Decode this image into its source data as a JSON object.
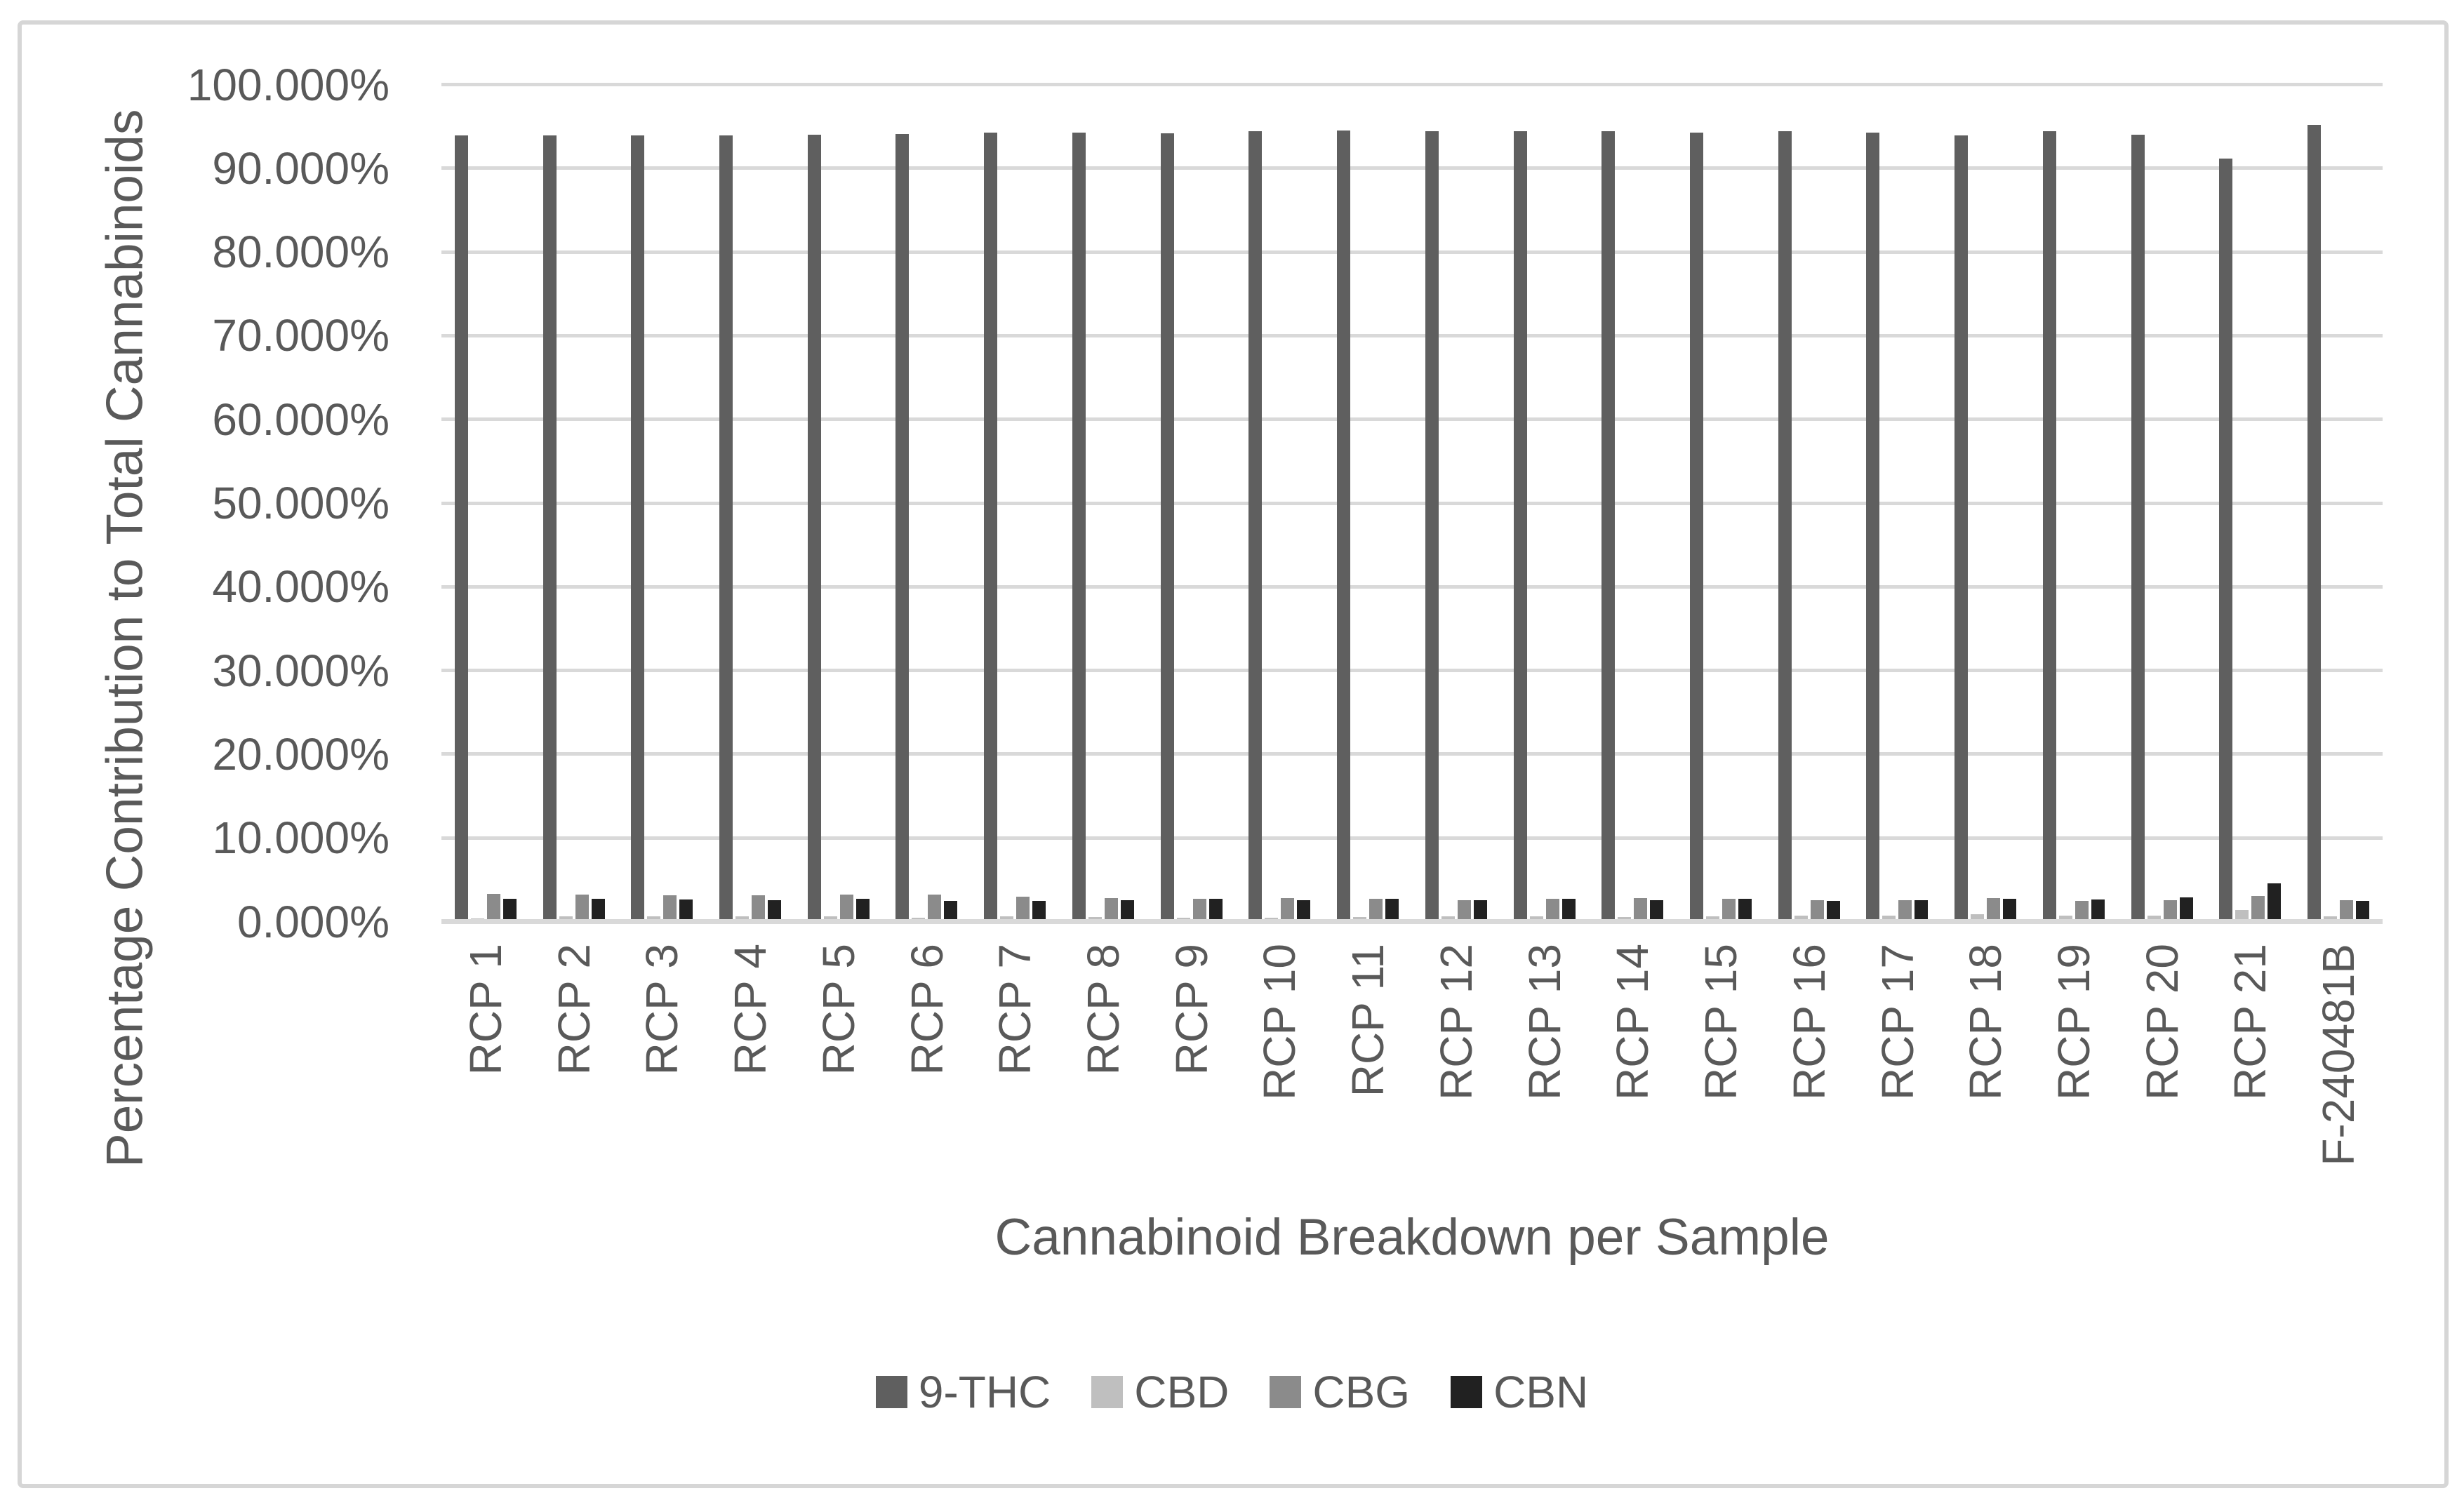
{
  "chart_data": {
    "type": "bar",
    "title": "",
    "xlabel": "Cannabinoid Breakdown per Sample",
    "ylabel": "Percentage Contribution to Total Cannabinoids",
    "ylim": [
      0,
      100
    ],
    "grid": true,
    "legend_position": "bottom",
    "ytick_labels": [
      "0.000%",
      "10.000%",
      "20.000%",
      "30.000%",
      "40.000%",
      "50.000%",
      "60.000%",
      "70.000%",
      "80.000%",
      "90.000%",
      "100.000%"
    ],
    "categories": [
      "RCP 1",
      "RCP 2",
      "RCP 3",
      "RCP 4",
      "RCP 5",
      "RCP 6",
      "RCP 7",
      "RCP 8",
      "RCP 9",
      "RCP 10",
      "RCP 11",
      "RCP 12",
      "RCP 13",
      "RCP 14",
      "RCP 15",
      "RCP 16",
      "RCP 17",
      "RCP 18",
      "RCP 19",
      "RCP 20",
      "RCP 21",
      "F-240481B"
    ],
    "series": [
      {
        "name": "9-THC",
        "color": "#5f5f5f",
        "values": [
          93.6,
          93.6,
          93.6,
          93.6,
          93.7,
          93.8,
          94.0,
          94.0,
          93.9,
          94.1,
          94.2,
          94.1,
          94.1,
          94.1,
          94.0,
          94.1,
          94.0,
          93.6,
          94.1,
          93.7,
          90.9,
          94.9
        ]
      },
      {
        "name": "CBD",
        "color": "#bfbfbf",
        "values": [
          0.1,
          0.35,
          0.35,
          0.35,
          0.3,
          0.2,
          0.3,
          0.25,
          0.2,
          0.2,
          0.25,
          0.35,
          0.35,
          0.25,
          0.35,
          0.45,
          0.4,
          0.6,
          0.4,
          0.4,
          1.05,
          0.35
        ]
      },
      {
        "name": "CBG",
        "color": "#8b8b8b",
        "values": [
          3.0,
          2.9,
          2.85,
          2.85,
          2.9,
          2.9,
          2.7,
          2.5,
          2.4,
          2.5,
          2.45,
          2.3,
          2.45,
          2.5,
          2.4,
          2.3,
          2.3,
          2.5,
          2.2,
          2.3,
          2.8,
          2.25
        ]
      },
      {
        "name": "CBN",
        "color": "#212121",
        "values": [
          2.4,
          2.4,
          2.35,
          2.3,
          2.4,
          2.2,
          2.2,
          2.3,
          2.4,
          2.3,
          2.4,
          2.3,
          2.4,
          2.3,
          2.4,
          2.2,
          2.25,
          2.45,
          2.35,
          2.6,
          4.25,
          2.15
        ]
      }
    ],
    "colors": {
      "gridline": "#d9d9d9",
      "text": "#595959",
      "frame_border": "#d6d6d6",
      "background": "#ffffff"
    }
  }
}
